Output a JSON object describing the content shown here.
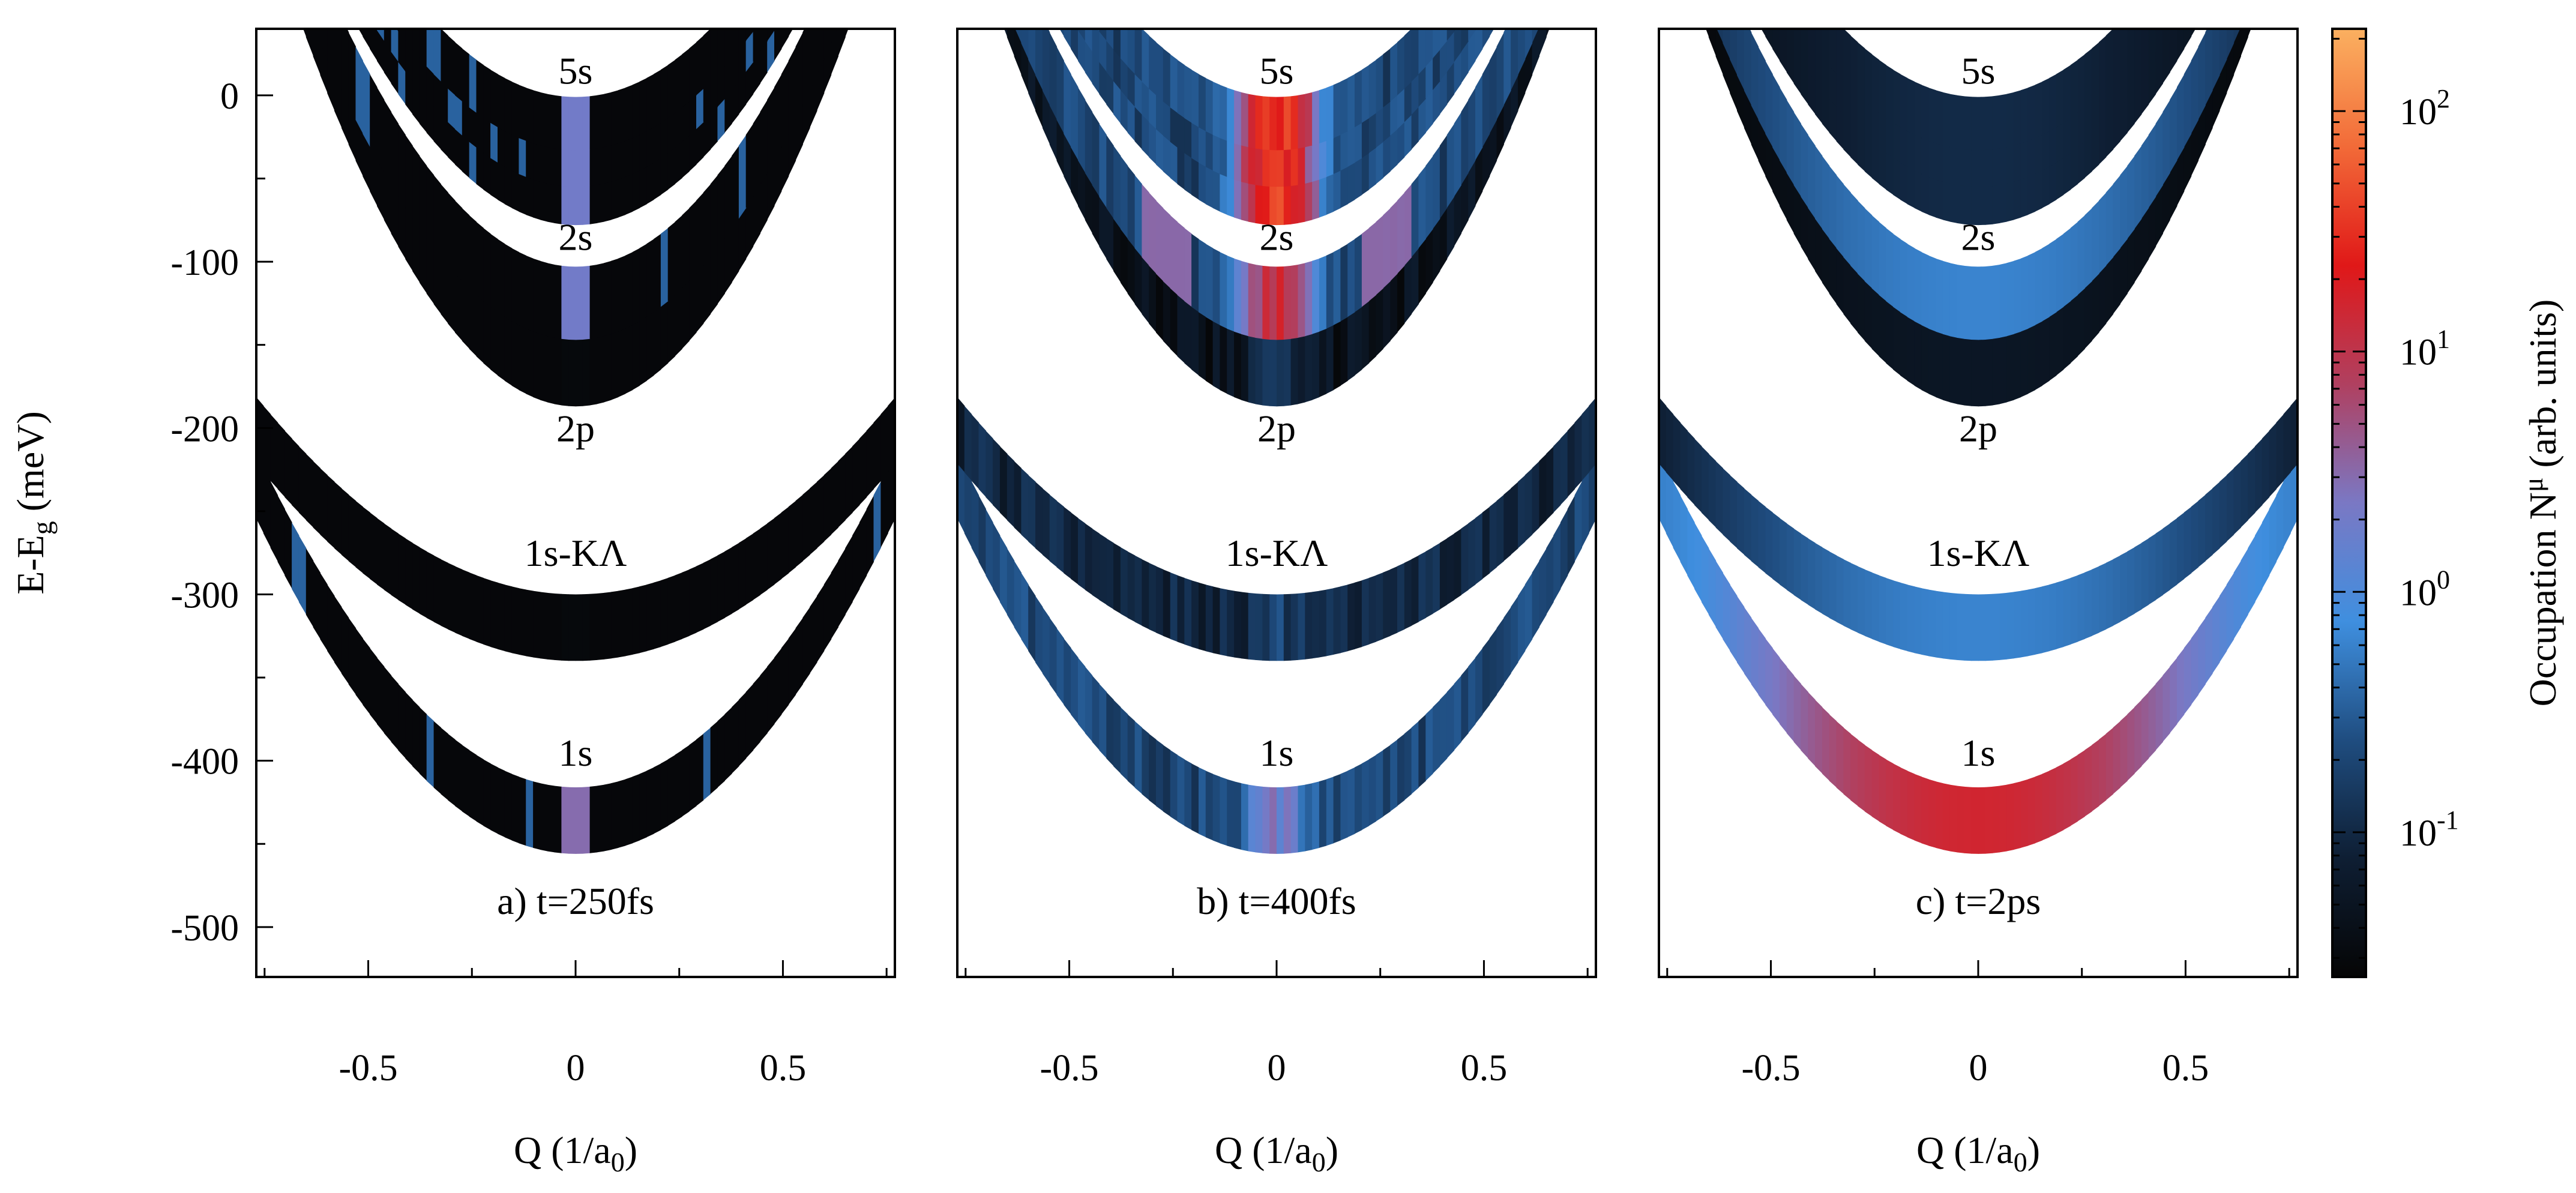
{
  "chart_data": {
    "type": "heatmap",
    "description_kind": "exciton band occupation vs center-of-mass momentum",
    "xlabel_main": "Q (1/a",
    "xlabel_sub": "0",
    "xlabel_end": ")",
    "ylabel_main": "E-E",
    "ylabel_sub": "g",
    "ylabel_end": " (meV)",
    "xlim": [
      -0.77,
      0.77
    ],
    "ylim": [
      -530,
      40
    ],
    "xticks": [
      -0.5,
      0,
      0.5
    ],
    "xtick_labels": [
      "-0.5",
      "0",
      "0.5"
    ],
    "yticks": [
      0,
      -100,
      -200,
      -300,
      -400,
      -500
    ],
    "ytick_labels": [
      "0",
      "-100",
      "-200",
      "-300",
      "-400",
      "-500"
    ],
    "bands": [
      {
        "name": "1s",
        "min_energy": -436,
        "width": 20,
        "curvature": 340,
        "label_energy": -395
      },
      {
        "name": "1s-KΛ",
        "min_energy": -320,
        "width": 20,
        "curvature": 200,
        "label_energy": -275
      },
      {
        "name": "2p",
        "min_energy": -165,
        "width": 22,
        "curvature": 525,
        "label_energy": -200
      },
      {
        "name": "2s",
        "min_energy": -125,
        "width": 22,
        "curvature": 470,
        "label_energy": -85
      },
      {
        "name": "5s",
        "min_energy": -57,
        "width": 21,
        "curvature": 430,
        "label_energy": 15
      },
      {
        "name": "",
        "min_energy": -37,
        "width": 18,
        "curvature": 410,
        "label_energy": null
      },
      {
        "name": "",
        "min_energy": -17,
        "width": 16,
        "curvature": 390,
        "label_energy": null
      }
    ],
    "panels": [
      {
        "label": "a) t=250fs",
        "occupation_note": "mostly dark with narrow stripes near Q=0",
        "peak_occupation": {
          "1s": 3,
          "2s": 2,
          "5s": 2,
          "2p": 0.03,
          "1s-KΛ": 0.03
        }
      },
      {
        "label": "b) t=400fs",
        "occupation_note": "broader blue distribution, red near Q=0 for 2s and 5s",
        "peak_occupation": {
          "1s": 2,
          "2s": 12,
          "5s": 40,
          "2p": 0.08,
          "1s-KΛ": 0.1
        }
      },
      {
        "label": "c) t=2ps",
        "occupation_note": "thermalized; 1s strongly occupied",
        "peak_occupation": {
          "1s": 15,
          "2s": 0.6,
          "5s": 0.08,
          "2p": 0.03,
          "1s-KΛ": 0.6
        }
      }
    ],
    "colorbar": {
      "label_main": "Occupation N",
      "label_sup": "μ",
      "label_end": " (arb. units)",
      "scale": "log",
      "range": [
        0.025,
        220
      ],
      "ticks": [
        {
          "value": 0.1,
          "base": "10",
          "exp": "-1"
        },
        {
          "value": 1,
          "base": "10",
          "exp": "0"
        },
        {
          "value": 10,
          "base": "10",
          "exp": "1"
        },
        {
          "value": 100,
          "base": "10",
          "exp": "2"
        }
      ],
      "colors": [
        "#050505",
        "#0e1e33",
        "#1f4d80",
        "#3f8fdf",
        "#7a78c4",
        "#b04060",
        "#e01818",
        "#f26a38",
        "#fbb060"
      ]
    }
  }
}
